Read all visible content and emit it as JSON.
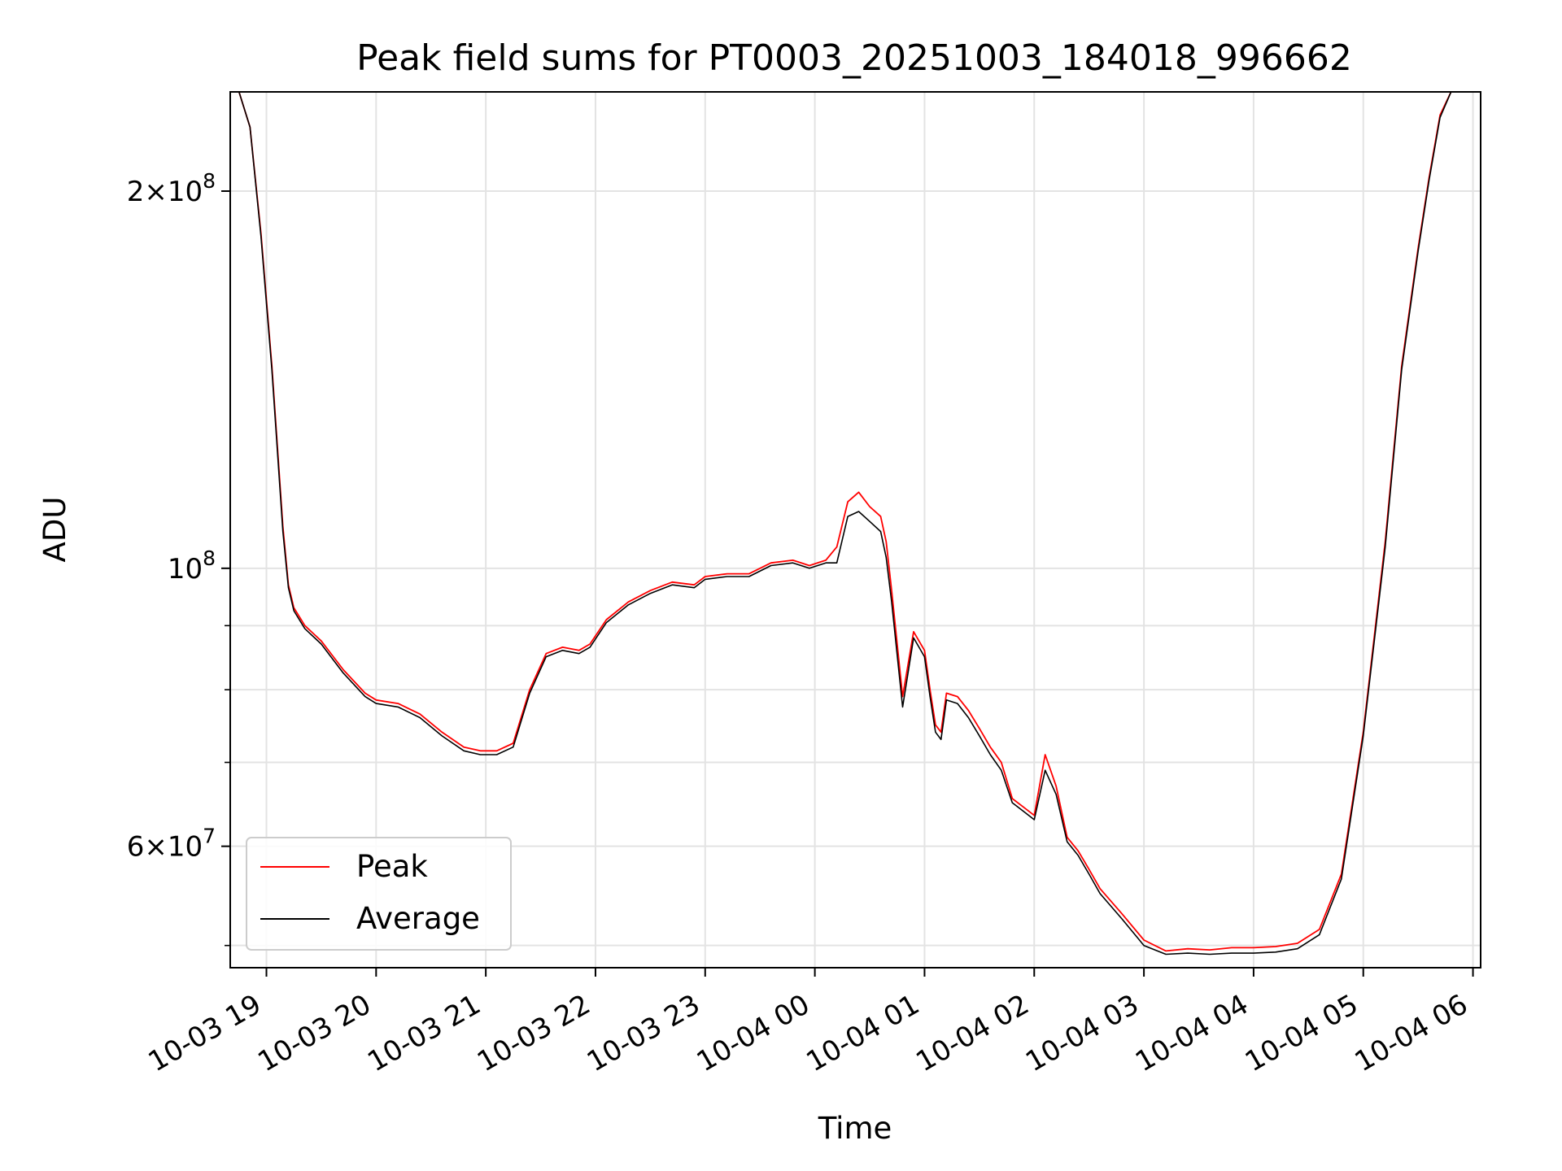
{
  "chart_data": {
    "type": "line",
    "title": "Peak field sums for PT0003_20251003_184018_996662",
    "xlabel": "Time",
    "ylabel": "ADU",
    "yscale": "log",
    "ylim": [
      48000000,
      240000000
    ],
    "xlim_hours": [
      -0.33,
      11.07
    ],
    "grid": true,
    "legend_position": "lower-left",
    "x_ticks": [
      {
        "h": 0,
        "label": "10-03 19"
      },
      {
        "h": 1,
        "label": "10-03 20"
      },
      {
        "h": 2,
        "label": "10-03 21"
      },
      {
        "h": 3,
        "label": "10-03 22"
      },
      {
        "h": 4,
        "label": "10-03 23"
      },
      {
        "h": 5,
        "label": "10-04 00"
      },
      {
        "h": 6,
        "label": "10-04 01"
      },
      {
        "h": 7,
        "label": "10-04 02"
      },
      {
        "h": 8,
        "label": "10-04 03"
      },
      {
        "h": 9,
        "label": "10-04 04"
      },
      {
        "h": 10,
        "label": "10-04 05"
      },
      {
        "h": 11,
        "label": "10-04 06"
      }
    ],
    "y_major_ticks": [
      {
        "value": 60000000,
        "mant": "6",
        "base": "10",
        "exp": "7"
      },
      {
        "value": 100000000,
        "mant": "",
        "base": "10",
        "exp": "8"
      },
      {
        "value": 200000000,
        "mant": "2",
        "base": "10",
        "exp": "8"
      }
    ],
    "y_minor_ticks": [
      50000000,
      70000000,
      80000000,
      90000000
    ],
    "x_unit": "hours after 10-03 19:00",
    "series": [
      {
        "name": "Peak",
        "color": "#ff0000",
        "x": [
          -0.33,
          -0.25,
          -0.15,
          -0.05,
          0.05,
          0.15,
          0.2,
          0.25,
          0.35,
          0.5,
          0.7,
          0.9,
          1.0,
          1.2,
          1.4,
          1.6,
          1.8,
          1.95,
          2.1,
          2.25,
          2.4,
          2.55,
          2.7,
          2.85,
          2.95,
          3.1,
          3.3,
          3.5,
          3.7,
          3.9,
          4.0,
          4.2,
          4.4,
          4.6,
          4.8,
          4.95,
          5.1,
          5.2,
          5.3,
          5.4,
          5.5,
          5.6,
          5.65,
          5.7,
          5.8,
          5.9,
          6.0,
          6.05,
          6.1,
          6.15,
          6.2,
          6.3,
          6.4,
          6.5,
          6.6,
          6.7,
          6.8,
          6.9,
          7.0,
          7.1,
          7.2,
          7.3,
          7.4,
          7.45,
          7.5,
          7.6,
          7.8,
          8.0,
          8.2,
          8.4,
          8.6,
          8.8,
          9.0,
          9.2,
          9.4,
          9.6,
          9.8,
          10.0,
          10.2,
          10.35,
          10.5,
          10.6,
          10.7,
          10.8,
          10.9,
          11.0,
          11.07
        ],
        "y": [
          240000000,
          240000000,
          225000000,
          185000000,
          145000000,
          108000000,
          97000000,
          93000000,
          90000000,
          87500000,
          83000000,
          79500000,
          78500000,
          78000000,
          76500000,
          74000000,
          72000000,
          71500000,
          71500000,
          72500000,
          80000000,
          85500000,
          86500000,
          86000000,
          87000000,
          91000000,
          94000000,
          96000000,
          97500000,
          97000000,
          98500000,
          99000000,
          99000000,
          101000000,
          101500000,
          100500000,
          101500000,
          104000000,
          113000000,
          115000000,
          112000000,
          110000000,
          105000000,
          96000000,
          79000000,
          89000000,
          86000000,
          80000000,
          75000000,
          74000000,
          79500000,
          79000000,
          77000000,
          74500000,
          72000000,
          70000000,
          65500000,
          64500000,
          63500000,
          71000000,
          67000000,
          61000000,
          59500000,
          58500000,
          57500000,
          55500000,
          53000000,
          50500000,
          49500000,
          49700000,
          49600000,
          49800000,
          49800000,
          49900000,
          50200000,
          51500000,
          57000000,
          74000000,
          105000000,
          145000000,
          180000000,
          205000000,
          230000000,
          240000000,
          240000000,
          240000000,
          240000000
        ]
      },
      {
        "name": "Average",
        "color": "#000000",
        "x": [
          -0.33,
          -0.25,
          -0.15,
          -0.05,
          0.05,
          0.15,
          0.2,
          0.25,
          0.35,
          0.5,
          0.7,
          0.9,
          1.0,
          1.2,
          1.4,
          1.6,
          1.8,
          1.95,
          2.1,
          2.25,
          2.4,
          2.55,
          2.7,
          2.85,
          2.95,
          3.1,
          3.3,
          3.5,
          3.7,
          3.9,
          4.0,
          4.2,
          4.4,
          4.6,
          4.8,
          4.95,
          5.1,
          5.2,
          5.3,
          5.4,
          5.5,
          5.6,
          5.65,
          5.7,
          5.8,
          5.9,
          6.0,
          6.05,
          6.1,
          6.15,
          6.2,
          6.3,
          6.4,
          6.5,
          6.6,
          6.7,
          6.8,
          6.9,
          7.0,
          7.1,
          7.2,
          7.3,
          7.4,
          7.45,
          7.5,
          7.6,
          7.8,
          8.0,
          8.2,
          8.4,
          8.6,
          8.8,
          9.0,
          9.2,
          9.4,
          9.6,
          9.8,
          10.0,
          10.2,
          10.35,
          10.5,
          10.6,
          10.7,
          10.8,
          10.9,
          11.0,
          11.07
        ],
        "y": [
          240000000,
          240000000,
          225000000,
          184000000,
          144000000,
          107000000,
          96500000,
          92500000,
          89500000,
          87000000,
          82500000,
          79000000,
          78000000,
          77500000,
          76000000,
          73500000,
          71500000,
          71000000,
          71000000,
          72000000,
          79500000,
          85000000,
          86000000,
          85500000,
          86500000,
          90500000,
          93500000,
          95500000,
          97000000,
          96500000,
          98000000,
          98500000,
          98500000,
          100500000,
          101000000,
          100000000,
          101000000,
          101000000,
          110000000,
          111000000,
          109000000,
          107000000,
          102000000,
          94000000,
          77500000,
          88000000,
          85000000,
          79000000,
          74000000,
          73000000,
          78500000,
          78000000,
          76000000,
          73500000,
          71000000,
          69000000,
          65000000,
          64000000,
          63000000,
          69000000,
          66000000,
          60500000,
          59000000,
          58000000,
          57000000,
          55000000,
          52500000,
          50000000,
          49200000,
          49300000,
          49200000,
          49300000,
          49300000,
          49400000,
          49700000,
          51000000,
          56500000,
          73500000,
          104000000,
          144000000,
          179000000,
          204000000,
          229000000,
          240000000,
          240000000,
          240000000,
          240000000
        ]
      }
    ]
  }
}
